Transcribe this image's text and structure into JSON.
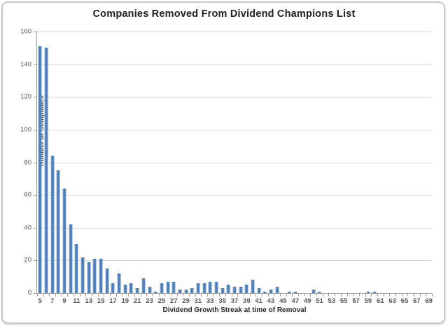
{
  "chart_data": {
    "type": "bar",
    "title": "Companies Removed From Dividend Champions List",
    "xlabel": "Dividend Growth Streak at time of Removal",
    "ylabel": "Number of Companies",
    "categories": [
      5,
      6,
      7,
      8,
      9,
      10,
      11,
      12,
      13,
      14,
      15,
      16,
      17,
      18,
      19,
      20,
      21,
      22,
      23,
      24,
      25,
      26,
      27,
      28,
      29,
      30,
      31,
      32,
      33,
      34,
      35,
      36,
      37,
      38,
      39,
      40,
      41,
      42,
      43,
      44,
      45,
      46,
      47,
      48,
      49,
      50,
      51,
      52,
      53,
      54,
      55,
      56,
      57,
      58,
      59,
      60,
      61,
      62,
      63,
      64,
      65,
      66,
      67,
      68,
      69
    ],
    "values": [
      151,
      150,
      84,
      75,
      64,
      42,
      30,
      22,
      19,
      21,
      21,
      15,
      6,
      12,
      5,
      6,
      3,
      9,
      4,
      1,
      6,
      7,
      7,
      2,
      2,
      3,
      6,
      6,
      7,
      7,
      3,
      5,
      4,
      4,
      5,
      8,
      3,
      1,
      2,
      4,
      0,
      1,
      1,
      0,
      0,
      2,
      1,
      0,
      0,
      0,
      0,
      0,
      0,
      0,
      1,
      1,
      0,
      0,
      0,
      0,
      0,
      0,
      0,
      0,
      0
    ],
    "x_tick_labels": [
      5,
      7,
      9,
      11,
      13,
      15,
      17,
      19,
      21,
      23,
      25,
      27,
      29,
      31,
      33,
      35,
      37,
      39,
      41,
      43,
      45,
      47,
      49,
      51,
      53,
      55,
      57,
      59,
      61,
      63,
      65,
      67,
      69
    ],
    "y_ticks": [
      0,
      20,
      40,
      60,
      80,
      100,
      120,
      140,
      160
    ],
    "ylim": [
      0,
      160
    ],
    "grid": "horizontal",
    "legend": "none",
    "bar_color": "#4f81bd",
    "gridline_color": "#d9d9d9",
    "axis_color": "#9e9e9e",
    "tick_label_color": "#595959",
    "title_color": "#1f1f1f"
  }
}
